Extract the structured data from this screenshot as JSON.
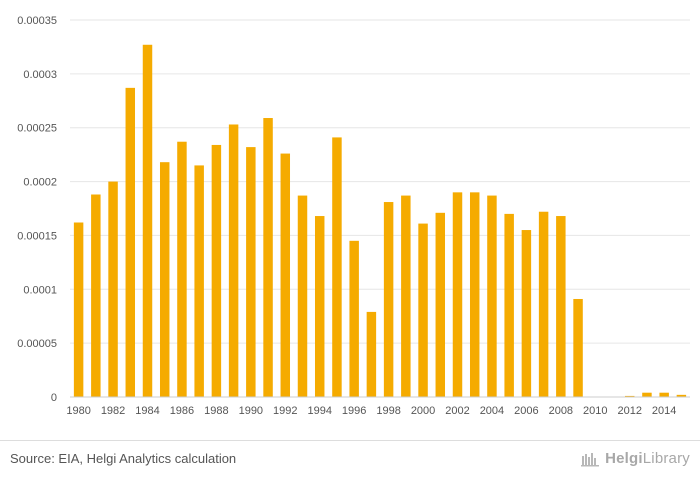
{
  "chart_data": {
    "type": "bar",
    "title": "",
    "xlabel": "",
    "ylabel": "",
    "ylim": [
      0,
      0.00035
    ],
    "yticks": [
      "0",
      "0.00005",
      "0.0001",
      "0.00015",
      "0.0002",
      "0.00025",
      "0.0003",
      "0.00035"
    ],
    "ytick_values": [
      0,
      5e-05,
      0.0001,
      0.00015,
      0.0002,
      0.00025,
      0.0003,
      0.00035
    ],
    "categories": [
      "1980",
      "1981",
      "1982",
      "1983",
      "1984",
      "1985",
      "1986",
      "1987",
      "1988",
      "1989",
      "1990",
      "1991",
      "1992",
      "1993",
      "1994",
      "1995",
      "1996",
      "1997",
      "1998",
      "1999",
      "2000",
      "2001",
      "2002",
      "2003",
      "2004",
      "2005",
      "2006",
      "2007",
      "2008",
      "2009",
      "2010",
      "2011",
      "2012",
      "2013",
      "2014",
      "2015"
    ],
    "xtick_labels": [
      "1980",
      "1982",
      "1984",
      "1986",
      "1988",
      "1990",
      "1992",
      "1994",
      "1996",
      "1998",
      "2000",
      "2002",
      "2004",
      "2006",
      "2008",
      "2010",
      "2012",
      "2014"
    ],
    "values": [
      0.000162,
      0.000188,
      0.0002,
      0.000287,
      0.000327,
      0.000218,
      0.000237,
      0.000215,
      0.000234,
      0.000253,
      0.000232,
      0.000259,
      0.000226,
      0.000187,
      0.000168,
      0.000241,
      0.000145,
      7.9e-05,
      0.000181,
      0.000187,
      0.000161,
      0.000171,
      0.00019,
      0.00019,
      0.000187,
      0.00017,
      0.000155,
      0.000172,
      0.000168,
      9.1e-05,
      0,
      0,
      1e-06,
      4e-06,
      4e-06,
      2e-06
    ],
    "bar_color": "#f5ab00",
    "grid": true
  },
  "footer": {
    "source": "Source: EIA, Helgi Analytics calculation",
    "brand_part1": "Helgi",
    "brand_part2": "Library"
  },
  "colors": {
    "brand": "#a8a8a8",
    "bar": "#f5ab00"
  },
  "icons": {
    "brand": "helgi-library-logo-icon"
  }
}
